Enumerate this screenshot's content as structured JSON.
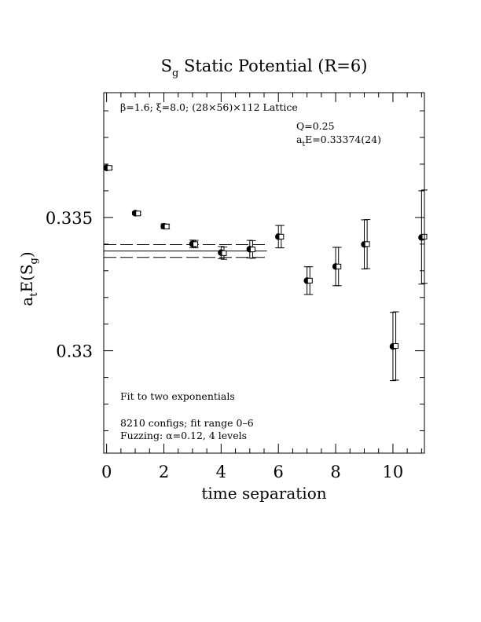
{
  "chart_data": {
    "type": "scatter",
    "title": "S",
    "title_subscript": "g",
    "title_rest": " Static Potential (R=6)",
    "xlabel": "time separation",
    "ylabel_main": "a",
    "ylabel_sub1": "t",
    "ylabel_mid": "E(S",
    "ylabel_sub2": "g",
    "ylabel_end": ")",
    "xlim": [
      -0.1,
      11.1
    ],
    "ylim": [
      0.32616,
      0.33968
    ],
    "x_ticks": [
      0,
      2,
      4,
      6,
      8,
      10
    ],
    "x_tick_labels": [
      "0",
      "2",
      "4",
      "6",
      "8",
      "10"
    ],
    "x_minor_step": 0.5,
    "y_ticks": [
      0.33,
      0.335
    ],
    "y_tick_labels": [
      "0.33",
      "0.335"
    ],
    "y_minor_step": 0.001,
    "grid": false,
    "annotations": {
      "lattice_beta": "β=1.6; ",
      "lattice_xi": "ξ=8.0; ",
      "lattice_rest": "(28×56)×112 Lattice",
      "q": "Q=0.25",
      "energy_main": "a",
      "energy_sub": "t",
      "energy_rest": "E=0.33374(24)",
      "fit": "Fit to two exponentials",
      "configs": "8210 configs; fit range 0–6",
      "fuzzing_pre": "Fuzzing: ",
      "fuzzing_alpha": "α",
      "fuzzing_post": "=0.12, 4 levels"
    },
    "fit": {
      "value": 0.33374,
      "error": 0.00024,
      "x_range": [
        -0.1,
        5.6
      ]
    },
    "series": [
      {
        "marker": "filled-circle",
        "x": [
          0,
          1,
          2,
          3,
          4,
          5,
          6,
          7,
          8,
          9,
          10,
          11
        ],
        "y": [
          0.33686,
          0.33516,
          0.33467,
          0.33401,
          0.33368,
          0.33381,
          0.33428,
          0.33263,
          0.33316,
          0.33399,
          0.33016,
          0.33425
        ],
        "err": [
          5e-05,
          6e-05,
          9e-05,
          0.00014,
          0.00023,
          0.00033,
          0.00042,
          0.00052,
          0.00072,
          0.00092,
          0.00128,
          0.00175
        ]
      },
      {
        "marker": "open-square",
        "x": [
          0.1,
          1.1,
          2.1,
          3.1,
          4.1,
          5.1,
          6.1,
          7.1,
          8.1,
          9.1,
          10.1,
          11.1
        ],
        "y": [
          0.33686,
          0.33515,
          0.33466,
          0.334,
          0.33366,
          0.3338,
          0.33428,
          0.33263,
          0.33316,
          0.334,
          0.33018,
          0.33428
        ],
        "err": [
          5e-05,
          6e-05,
          9e-05,
          0.00014,
          0.00023,
          0.00033,
          0.00042,
          0.00052,
          0.00072,
          0.00092,
          0.00128,
          0.00175
        ]
      }
    ]
  }
}
